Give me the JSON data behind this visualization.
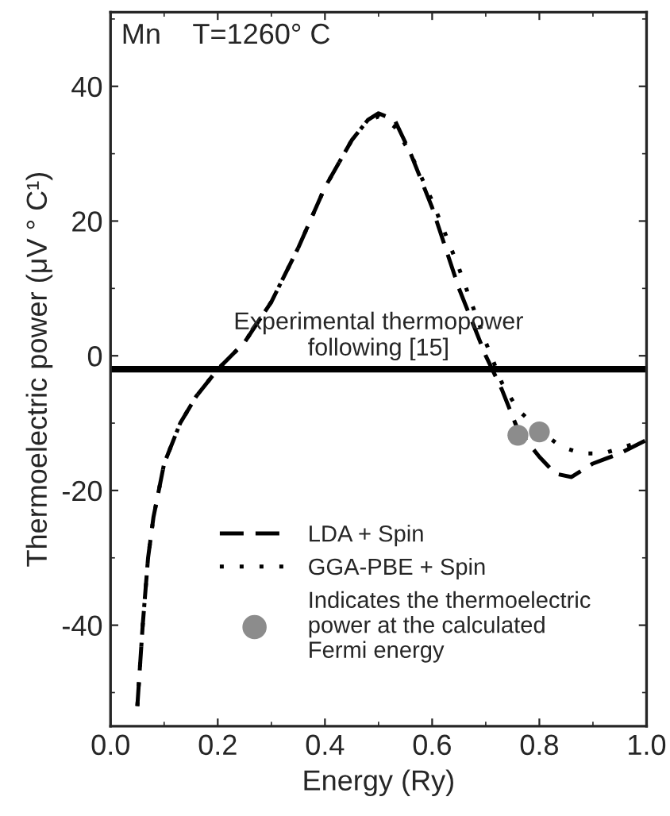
{
  "chart_data": {
    "type": "line",
    "xlabel": "Energy (Ry)",
    "ylabel": "Thermoelectric power (μV ° C¹)",
    "annotations": [
      "Mn    T=1260° C"
    ],
    "xlim": [
      0.0,
      1.0
    ],
    "xticks": [
      {
        "value": 0.0,
        "label": "0.0"
      },
      0.2,
      0.4,
      0.6,
      0.8,
      {
        "value": 1.0,
        "label": "1.0"
      }
    ],
    "ylim": [
      -55,
      51
    ],
    "yticks": [
      -40,
      -20,
      0,
      20,
      40
    ],
    "grid": false,
    "legend": "lower center",
    "ref_lines": [
      {
        "axis": "y",
        "value": -2,
        "label": "Experimental thermopower\nfollowing [15]",
        "color": "#000000",
        "line_style": "solid"
      }
    ],
    "series": [
      {
        "name": "LDA + Spin",
        "color": "#000000",
        "line_style": "dashed",
        "x": [
          0.05,
          0.06,
          0.07,
          0.08,
          0.1,
          0.13,
          0.16,
          0.2,
          0.25,
          0.3,
          0.35,
          0.4,
          0.45,
          0.48,
          0.5,
          0.53,
          0.56,
          0.6,
          0.65,
          0.7,
          0.73,
          0.76,
          0.8,
          0.83,
          0.86,
          0.9,
          0.95,
          1.0
        ],
        "values": [
          -52,
          -40,
          -30,
          -24,
          -16,
          -10,
          -6,
          -2,
          2,
          8,
          16,
          25,
          32,
          35,
          36,
          35,
          30,
          22,
          10,
          0,
          -5,
          -11,
          -15,
          -17.5,
          -18,
          -16,
          -14.5,
          -12.5
        ]
      },
      {
        "name": "GGA-PBE + Spin",
        "color": "#000000",
        "line_style": "dotted",
        "x": [
          0.05,
          0.06,
          0.07,
          0.08,
          0.1,
          0.13,
          0.16,
          0.2,
          0.25,
          0.3,
          0.35,
          0.4,
          0.45,
          0.48,
          0.5,
          0.53,
          0.56,
          0.6,
          0.65,
          0.7,
          0.73,
          0.76,
          0.8,
          0.84,
          0.88,
          0.92,
          0.96,
          1.0
        ],
        "values": [
          -52,
          -40,
          -30,
          -24,
          -16,
          -10,
          -6,
          -2,
          2,
          8,
          16,
          25,
          32,
          35,
          35.5,
          34,
          30,
          23,
          13,
          2,
          -4,
          -8,
          -11,
          -13.5,
          -14.5,
          -14.5,
          -13.5,
          -12.5
        ]
      },
      {
        "name": "Indicates the thermoelectric\npower at the calculated\nFermi energy",
        "type": "scatter",
        "color": "#8c8c8c",
        "marker": "circle",
        "x": [
          0.76,
          0.8
        ],
        "values": [
          -11.8,
          -11.3
        ]
      }
    ]
  }
}
